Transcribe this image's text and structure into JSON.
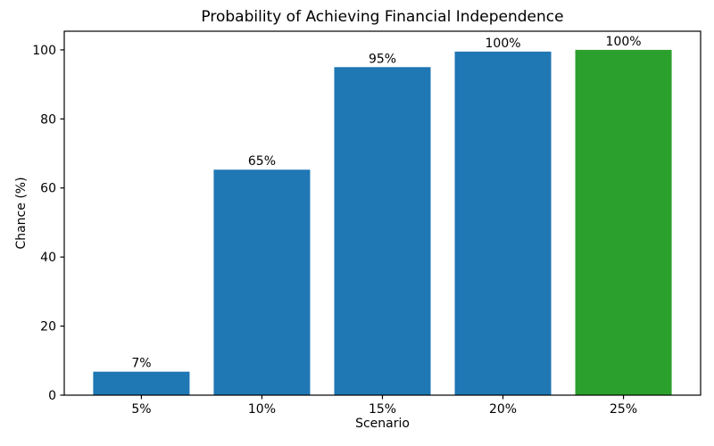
{
  "chart_data": {
    "type": "bar",
    "title": "Probability of Achieving Financial Independence",
    "xlabel": "Scenario",
    "ylabel": "Chance (%)",
    "categories": [
      "5%",
      "10%",
      "15%",
      "20%",
      "25%"
    ],
    "values": [
      6.8,
      65.3,
      95.0,
      99.5,
      100.0
    ],
    "bar_labels": [
      "7%",
      "65%",
      "95%",
      "100%",
      "100%"
    ],
    "bar_colors": [
      "#1f77b4",
      "#1f77b4",
      "#1f77b4",
      "#1f77b4",
      "#2ca02c"
    ],
    "yticks": [
      0,
      20,
      40,
      60,
      80,
      100
    ],
    "ylim": [
      0,
      105.4
    ],
    "xlim": [
      -0.64,
      4.64
    ],
    "bar_width": 0.8,
    "grid": false,
    "legend": null,
    "background_color": "#ffffff",
    "axis_color": "#000000"
  }
}
